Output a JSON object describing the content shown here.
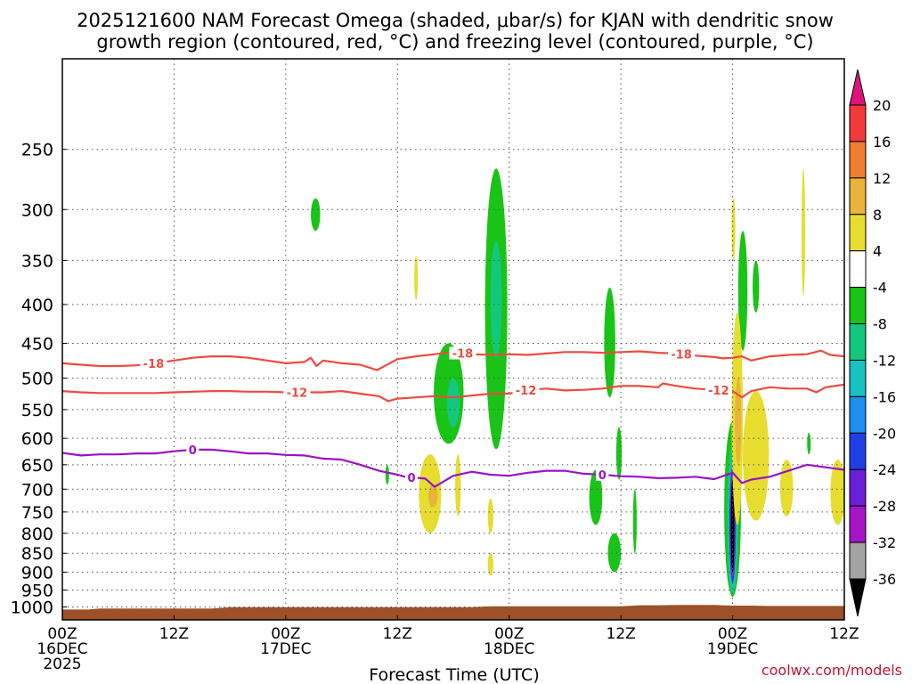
{
  "title_line1": "2025121600 NAM Forecast Omega (shaded, μbar/s) for KJAN with dendritic snow",
  "title_line2": "growth region (contoured, red, °C) and freezing level (contoured, purple, °C)",
  "credit": "coolwx.com/models",
  "colors": {
    "temperature_contour": "#ee4b3e",
    "freezing_level": "#9a12c8",
    "terrain": "#9c5128",
    "gridline": "#555555"
  },
  "chart_data": {
    "type": "heatmap",
    "title": "2025121600 NAM Forecast Omega (shaded, μbar/s) for KJAN with dendritic snow growth region (contoured, red, °C) and freezing level (contoured, purple, °C)",
    "xlabel": "Forecast Time (UTC)",
    "ylabel": "",
    "x_unit": "forecast hour",
    "xlim": [
      0,
      84
    ],
    "x_ticks": [
      {
        "hour": 0,
        "line1": "00Z",
        "line2": "16DEC",
        "line3": "2025"
      },
      {
        "hour": 12,
        "line1": "12Z",
        "line2": "",
        "line3": ""
      },
      {
        "hour": 24,
        "line1": "00Z",
        "line2": "17DEC",
        "line3": ""
      },
      {
        "hour": 36,
        "line1": "12Z",
        "line2": "",
        "line3": ""
      },
      {
        "hour": 48,
        "line1": "00Z",
        "line2": "18DEC",
        "line3": ""
      },
      {
        "hour": 60,
        "line1": "12Z",
        "line2": "",
        "line3": ""
      },
      {
        "hour": 72,
        "line1": "00Z",
        "line2": "19DEC",
        "line3": ""
      },
      {
        "hour": 84,
        "line1": "12Z",
        "line2": "",
        "line3": ""
      }
    ],
    "y_axis": {
      "type": "pressure",
      "unit": "mb",
      "range": [
        1040,
        190
      ],
      "ticks": [
        250,
        300,
        350,
        400,
        450,
        500,
        550,
        600,
        650,
        700,
        750,
        800,
        850,
        900,
        950,
        1000
      ]
    },
    "grid": true,
    "colorbar": {
      "unit": "μbar/s",
      "ticks": [
        "20",
        "16",
        "12",
        "8",
        "4",
        "-4",
        "-8",
        "-12",
        "-16",
        "-20",
        "-24",
        "-28",
        "-32",
        "-36"
      ],
      "bins": [
        {
          "range": "> 20",
          "color": "#dd127c"
        },
        {
          "range": "16 to 20",
          "color": "#f2393b"
        },
        {
          "range": "12 to 16",
          "color": "#ef7e2f"
        },
        {
          "range": "8 to 12",
          "color": "#e8b43a"
        },
        {
          "range": "4 to 8",
          "color": "#e6dd2f"
        },
        {
          "range": "-4 to 4",
          "color": "#ffffff"
        },
        {
          "range": "-8 to -4",
          "color": "#19c417"
        },
        {
          "range": "-12 to -8",
          "color": "#14c77f"
        },
        {
          "range": "-16 to -12",
          "color": "#17c2c0"
        },
        {
          "range": "-20 to -16",
          "color": "#1e8fee"
        },
        {
          "range": "-24 to -20",
          "color": "#1f3fe6"
        },
        {
          "range": "-28 to -24",
          "color": "#6b1fd6"
        },
        {
          "range": "-32 to -28",
          "color": "#a515c6"
        },
        {
          "range": "-36 to -32",
          "color": "#a3a3a3"
        },
        {
          "range": "< -36",
          "color": "#000000"
        }
      ]
    },
    "omega_regions": [
      {
        "hour": 27.2,
        "p_top": 290,
        "p_bottom": 320,
        "halfwidth": 0.5,
        "value": -6
      },
      {
        "hour": 46.6,
        "p_top": 265,
        "p_bottom": 620,
        "halfwidth": 1.2,
        "value": -6
      },
      {
        "hour": 46.6,
        "p_top": 330,
        "p_bottom": 470,
        "halfwidth": 0.6,
        "value": -11
      },
      {
        "hour": 41.5,
        "p_top": 450,
        "p_bottom": 610,
        "halfwidth": 1.6,
        "value": -6
      },
      {
        "hour": 42.0,
        "p_top": 500,
        "p_bottom": 580,
        "halfwidth": 0.7,
        "value": -11
      },
      {
        "hour": 58.8,
        "p_top": 380,
        "p_bottom": 530,
        "halfwidth": 0.6,
        "value": -6
      },
      {
        "hour": 57.3,
        "p_top": 660,
        "p_bottom": 780,
        "halfwidth": 0.7,
        "value": -6
      },
      {
        "hour": 59.3,
        "p_top": 800,
        "p_bottom": 900,
        "halfwidth": 0.7,
        "value": -6
      },
      {
        "hour": 59.8,
        "p_top": 580,
        "p_bottom": 680,
        "halfwidth": 0.3,
        "value": -6
      },
      {
        "hour": 61.5,
        "p_top": 700,
        "p_bottom": 850,
        "halfwidth": 0.2,
        "value": -6
      },
      {
        "hour": 34.9,
        "p_top": 650,
        "p_bottom": 690,
        "halfwidth": 0.15,
        "value": -6
      },
      {
        "hour": 73.1,
        "p_top": 320,
        "p_bottom": 460,
        "halfwidth": 0.5,
        "value": -6
      },
      {
        "hour": 74.5,
        "p_top": 350,
        "p_bottom": 410,
        "halfwidth": 0.35,
        "value": -6
      },
      {
        "hour": 80.2,
        "p_top": 590,
        "p_bottom": 630,
        "halfwidth": 0.15,
        "value": -6
      },
      {
        "hour": 72.0,
        "p_top": 570,
        "p_bottom": 970,
        "halfwidth": 0.9,
        "value": -6
      },
      {
        "hour": 72.0,
        "p_top": 610,
        "p_bottom": 965,
        "halfwidth": 0.6,
        "value": -10
      },
      {
        "hour": 72.0,
        "p_top": 640,
        "p_bottom": 950,
        "halfwidth": 0.45,
        "value": -14
      },
      {
        "hour": 72.0,
        "p_top": 655,
        "p_bottom": 930,
        "halfwidth": 0.35,
        "value": -22
      },
      {
        "hour": 72.0,
        "p_top": 670,
        "p_bottom": 915,
        "halfwidth": 0.25,
        "value": -30
      },
      {
        "hour": 72.0,
        "p_top": 680,
        "p_bottom": 900,
        "halfwidth": 0.15,
        "value": -40
      },
      {
        "hour": 39.5,
        "p_top": 630,
        "p_bottom": 800,
        "halfwidth": 1.2,
        "value": 6
      },
      {
        "hour": 39.8,
        "p_top": 690,
        "p_bottom": 740,
        "halfwidth": 0.5,
        "value": 10
      },
      {
        "hour": 42.5,
        "p_top": 630,
        "p_bottom": 760,
        "halfwidth": 0.3,
        "value": 6
      },
      {
        "hour": 46.0,
        "p_top": 720,
        "p_bottom": 800,
        "halfwidth": 0.3,
        "value": 6
      },
      {
        "hour": 46.0,
        "p_top": 850,
        "p_bottom": 910,
        "halfwidth": 0.3,
        "value": 6
      },
      {
        "hour": 38.0,
        "p_top": 345,
        "p_bottom": 395,
        "halfwidth": 0.1,
        "value": 6
      },
      {
        "hour": 72.1,
        "p_top": 290,
        "p_bottom": 350,
        "halfwidth": 0.15,
        "value": 6
      },
      {
        "hour": 72.5,
        "p_top": 410,
        "p_bottom": 780,
        "halfwidth": 0.6,
        "value": 6
      },
      {
        "hour": 72.6,
        "p_top": 500,
        "p_bottom": 650,
        "halfwidth": 0.35,
        "value": 10
      },
      {
        "hour": 74.5,
        "p_top": 520,
        "p_bottom": 770,
        "halfwidth": 1.4,
        "value": 6
      },
      {
        "hour": 79.6,
        "p_top": 265,
        "p_bottom": 390,
        "halfwidth": 0.15,
        "value": 6
      },
      {
        "hour": 77.8,
        "p_top": 640,
        "p_bottom": 760,
        "halfwidth": 0.7,
        "value": 6
      },
      {
        "hour": 83.3,
        "p_top": 640,
        "p_bottom": 780,
        "halfwidth": 0.8,
        "value": 6
      }
    ],
    "series": [
      {
        "name": "Dendritic growth -18 °C",
        "label": "-18",
        "label_hours": [
          9.8,
          43.0,
          66.5
        ],
        "x": [
          0,
          2,
          4,
          6,
          8,
          10,
          12,
          14,
          16,
          18,
          20,
          22,
          24,
          26,
          26.7,
          27.3,
          28,
          30,
          32,
          33.8,
          36,
          38,
          40,
          42,
          44,
          46,
          48,
          50,
          52,
          54,
          56,
          58,
          60,
          62,
          64,
          66,
          68,
          70,
          71,
          72,
          73,
          74,
          76,
          78,
          80,
          81.5,
          82.5,
          84
        ],
        "p": [
          478,
          480,
          482,
          482,
          481,
          478,
          474,
          470,
          468,
          468,
          470,
          474,
          478,
          476,
          470,
          482,
          474,
          478,
          480,
          488,
          472,
          468,
          465,
          462,
          465,
          466,
          465,
          466,
          464,
          462,
          462,
          463,
          462,
          461,
          463,
          464,
          467,
          469,
          471,
          470,
          468,
          474,
          468,
          466,
          465,
          460,
          466,
          468
        ]
      },
      {
        "name": "Dendritic growth -12 °C",
        "label": "-12",
        "label_hours": [
          25.2,
          49.8,
          70.5
        ],
        "x": [
          0,
          2,
          4,
          6,
          8,
          10,
          12,
          14,
          16,
          18,
          20,
          22,
          24,
          26,
          28,
          30,
          32,
          34,
          35,
          36,
          38,
          40,
          42,
          44,
          46,
          48,
          50,
          52,
          54,
          56,
          58,
          60,
          62,
          64,
          64.5,
          66,
          68,
          70,
          72,
          73,
          74,
          76,
          78,
          80,
          81,
          82,
          84
        ],
        "p": [
          520,
          522,
          523,
          523,
          523,
          523,
          522,
          521,
          520,
          520,
          521,
          521,
          522,
          522,
          522,
          520,
          524,
          528,
          536,
          532,
          530,
          528,
          530,
          527,
          524,
          524,
          518,
          516,
          519,
          518,
          516,
          512,
          512,
          514,
          508,
          512,
          516,
          518,
          520,
          530,
          520,
          514,
          516,
          516,
          522,
          514,
          510
        ]
      },
      {
        "name": "Freezing level 0 °C",
        "label": "0",
        "label_hours": [
          14.0,
          37.5,
          58.0
        ],
        "x": [
          0,
          2,
          4,
          6,
          8,
          10,
          12,
          14,
          16,
          18,
          20,
          22,
          24,
          26,
          28,
          30,
          32,
          34,
          36,
          37,
          38,
          39,
          40,
          42,
          44,
          46,
          48,
          50,
          52,
          54,
          56,
          58,
          60,
          62,
          64,
          66,
          68,
          70,
          72,
          73,
          74,
          76,
          78,
          80,
          82,
          84
        ],
        "p": [
          627,
          632,
          630,
          630,
          628,
          628,
          624,
          621,
          621,
          624,
          628,
          628,
          631,
          632,
          638,
          640,
          650,
          662,
          670,
          675,
          676,
          678,
          695,
          672,
          664,
          670,
          672,
          666,
          662,
          662,
          668,
          670,
          673,
          674,
          677,
          676,
          674,
          679,
          666,
          687,
          680,
          674,
          662,
          650,
          655,
          660
        ]
      }
    ],
    "terrain": {
      "name": "surface",
      "x": [
        0,
        2.8,
        4,
        16,
        18,
        30,
        44,
        46,
        48,
        60,
        62,
        64,
        66,
        68,
        70,
        72,
        74,
        76,
        78,
        84
      ],
      "p": [
        1008,
        1008,
        1005,
        1005,
        1001,
        1001,
        1001,
        998,
        998,
        998,
        995,
        995,
        994,
        994,
        994,
        996,
        996,
        997,
        997,
        997
      ]
    }
  }
}
